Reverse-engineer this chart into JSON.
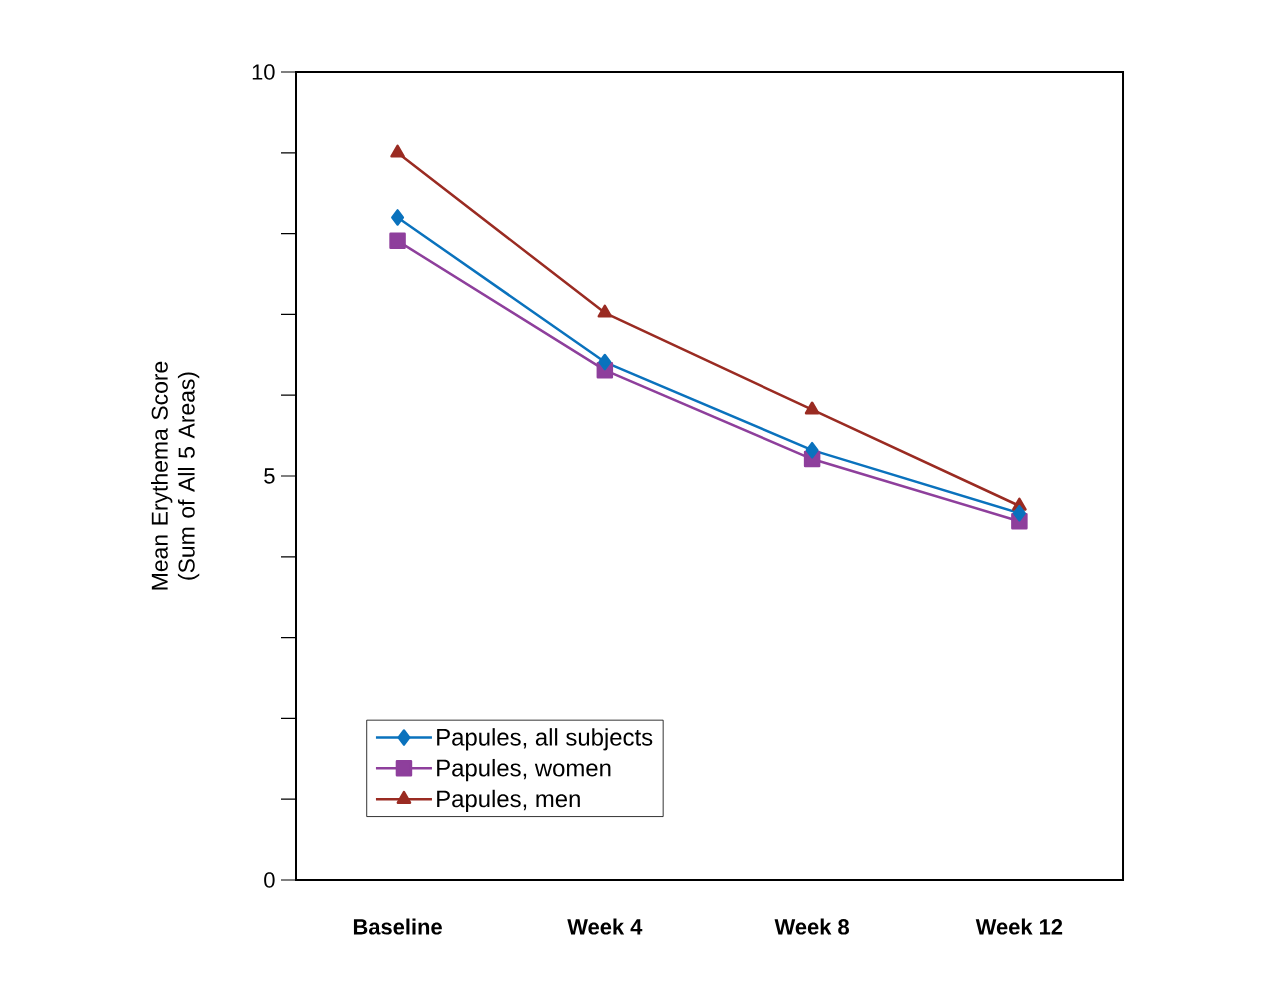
{
  "chart_data": {
    "type": "line",
    "ylabel": "Mean Erythema Score (Sum of All 5 Areas)",
    "categories": [
      "Baseline",
      "Week 4",
      "Week 8",
      "Week 12"
    ],
    "series": [
      {
        "name": "Papules, all subjects",
        "color": "#0a72bd",
        "marker": "diamond",
        "values": [
          8.2,
          6.41,
          5.32,
          4.54
        ]
      },
      {
        "name": "Papules, women",
        "color": "#8e3f9c",
        "marker": "square",
        "values": [
          7.91,
          6.31,
          5.21,
          4.44
        ]
      },
      {
        "name": "Papules, men",
        "color": "#9a2b22",
        "marker": "triangle",
        "values": [
          9.0,
          7.02,
          5.82,
          4.63
        ]
      }
    ],
    "ylim": [
      0,
      10
    ],
    "yticks": [
      0,
      {
        "value": 1,
        "label": null
      },
      {
        "value": 2,
        "label": null
      },
      {
        "value": 3,
        "label": null
      },
      {
        "value": 4,
        "label": null
      },
      5,
      {
        "value": 6,
        "label": null
      },
      {
        "value": 7,
        "label": null
      },
      {
        "value": 8,
        "label": null
      },
      {
        "value": 9,
        "label": null
      },
      10
    ],
    "legend": "bottom left"
  }
}
